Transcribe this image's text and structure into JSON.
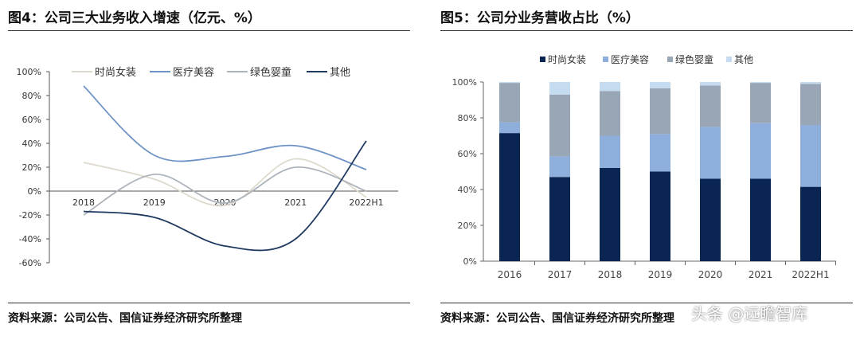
{
  "left": {
    "title": "图4：公司三大业务收入增速（亿元、%）",
    "source": "资料来源：公司公告、国信证券经济研究所整理"
  },
  "right": {
    "title": "图5：公司分业务营收占比（%）",
    "source": "资料来源：公司公告、国信证券经济研究所整理"
  },
  "watermark": "头条 @远瞻智库",
  "chart_data": [
    {
      "type": "line",
      "categories": [
        "2018",
        "2019",
        "2020",
        "2021",
        "2022H1"
      ],
      "ylim": [
        -60,
        100
      ],
      "yticks": [
        "-60%",
        "-40%",
        "-20%",
        "0%",
        "20%",
        "40%",
        "60%",
        "80%",
        "100%"
      ],
      "legend": "top",
      "series": [
        {
          "name": "时尚女装",
          "color": "#ddd9cc",
          "values": [
            24,
            10,
            -12,
            27,
            -5
          ]
        },
        {
          "name": "医疗美容",
          "color": "#6f93c6",
          "values": [
            88,
            30,
            29,
            38,
            18
          ]
        },
        {
          "name": "绿色婴童",
          "color": "#aeb4bc",
          "values": [
            -20,
            14,
            -10,
            20,
            0
          ]
        },
        {
          "name": "其他",
          "color": "#1f3a60",
          "values": [
            -17,
            -22,
            -46,
            -40,
            42
          ]
        }
      ]
    },
    {
      "type": "bar",
      "stacked": true,
      "categories": [
        "2016",
        "2017",
        "2018",
        "2019",
        "2020",
        "2021",
        "2022H1"
      ],
      "ylim": [
        0,
        100
      ],
      "yticks": [
        "0%",
        "20%",
        "40%",
        "60%",
        "80%",
        "100%"
      ],
      "legend": "top",
      "series": [
        {
          "name": "时尚女装",
          "color": "#0b2552",
          "values": [
            71.5,
            47,
            52,
            50,
            46,
            46,
            41.5
          ]
        },
        {
          "name": "医疗美容",
          "color": "#8eaedb",
          "values": [
            6,
            11.5,
            18,
            21,
            29,
            31,
            34.5
          ]
        },
        {
          "name": "绿色婴童",
          "color": "#98a6b5",
          "values": [
            22,
            34.5,
            25,
            25.5,
            23,
            22.5,
            23
          ]
        },
        {
          "name": "其他",
          "color": "#c5dbf0",
          "values": [
            0.5,
            7,
            5,
            3.5,
            2,
            0.5,
            1
          ]
        }
      ]
    }
  ]
}
